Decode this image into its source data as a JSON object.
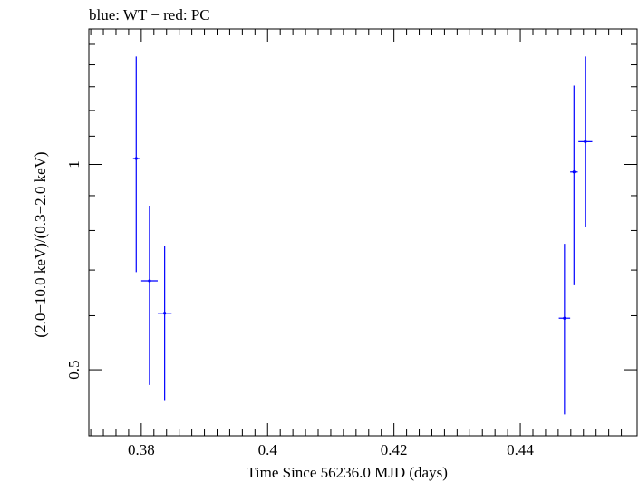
{
  "chart_data": {
    "type": "scatter",
    "title": "blue: WT − red: PC",
    "xlabel": "Time Since 56236.0 MJD (days)",
    "ylabel": "(2.0−10.0 keV)/(0.3−2.0 keV)",
    "xlim": [
      0.3717,
      0.4585
    ],
    "ylim": [
      0.4,
      1.58
    ],
    "yscale": "log",
    "x_ticks": [
      {
        "value": 0.38,
        "label": "0.38"
      },
      {
        "value": 0.4,
        "label": "0.4"
      },
      {
        "value": 0.42,
        "label": "0.42"
      },
      {
        "value": 0.44,
        "label": "0.44"
      }
    ],
    "y_ticks": [
      {
        "value": 0.5,
        "label": "0.5"
      },
      {
        "value": 1.0,
        "label": "1"
      }
    ],
    "series": [
      {
        "name": "WT",
        "color": "#0000ff",
        "points": [
          {
            "x": 0.3792,
            "xerr": 0.0005,
            "y": 1.02,
            "ylo": 0.695,
            "yhi": 1.44
          },
          {
            "x": 0.3813,
            "xerr": 0.0013,
            "y": 0.675,
            "ylo": 0.475,
            "yhi": 0.87
          },
          {
            "x": 0.3837,
            "xerr": 0.0011,
            "y": 0.605,
            "ylo": 0.45,
            "yhi": 0.76
          },
          {
            "x": 0.447,
            "xerr": 0.0009,
            "y": 0.595,
            "ylo": 0.43,
            "yhi": 0.765
          },
          {
            "x": 0.4485,
            "xerr": 0.0006,
            "y": 0.975,
            "ylo": 0.665,
            "yhi": 1.305
          },
          {
            "x": 0.4503,
            "xerr": 0.0011,
            "y": 1.08,
            "ylo": 0.81,
            "yhi": 1.44
          }
        ]
      }
    ]
  }
}
